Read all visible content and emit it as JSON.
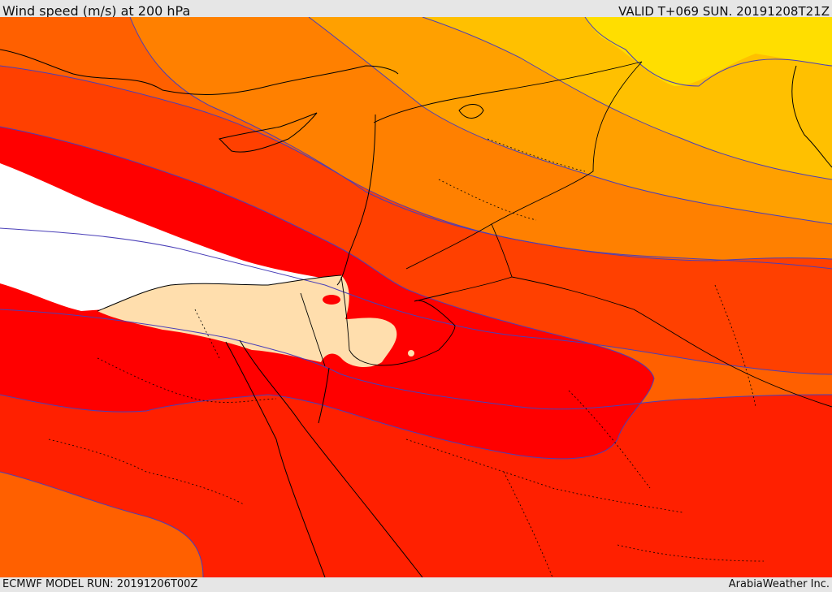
{
  "header": {
    "title": "Wind speed (m/s) at 200 hPa",
    "valid_time": "VALID T+069 SUN. 20191208T21Z"
  },
  "footer": {
    "model_run": "ECMWF MODEL RUN: 20191206T00Z",
    "credit": "ArabiaWeather Inc."
  },
  "map": {
    "fill_colors": {
      "yellow": "#ffde00",
      "gold": "#ffc000",
      "light_orange": "#ffa000",
      "orange": "#ff8000",
      "dark_orange": "#ff6000",
      "red_orange": "#ff4000",
      "scarlet": "#ff2000",
      "red": "#ff0000",
      "peach": "#ffdead",
      "none": "#ffffff"
    },
    "contour_color": "#4a3fb8",
    "border_color": "#000000"
  }
}
